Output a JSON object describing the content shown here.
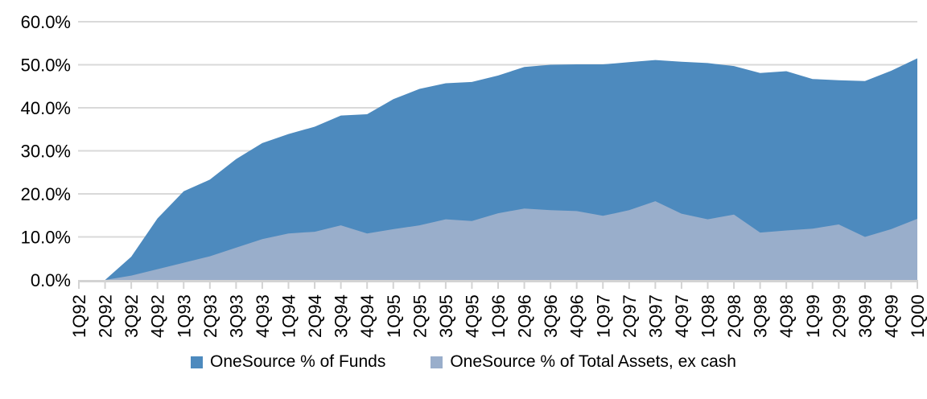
{
  "chart_data": {
    "type": "area",
    "title": "",
    "xlabel": "",
    "ylabel": "",
    "ylim": [
      0,
      60
    ],
    "ytick_step": 10,
    "yticks": [
      "0.0%",
      "10.0%",
      "20.0%",
      "30.0%",
      "40.0%",
      "50.0%",
      "60.0%"
    ],
    "grid": "horizontal",
    "legend_position": "bottom",
    "gridline_color": "#D9D9D9",
    "axis_color": "#D3D3D3",
    "text_color": "#000000",
    "background": "#FFFFFF",
    "overlapping_areas": true,
    "x": [
      "1Q92",
      "2Q92",
      "3Q92",
      "4Q92",
      "1Q93",
      "2Q93",
      "3Q93",
      "4Q93",
      "1Q94",
      "2Q94",
      "3Q94",
      "4Q94",
      "1Q95",
      "2Q95",
      "3Q95",
      "4Q95",
      "1Q96",
      "2Q96",
      "3Q96",
      "4Q96",
      "1Q97",
      "2Q97",
      "3Q97",
      "4Q97",
      "1Q98",
      "2Q98",
      "3Q98",
      "4Q98",
      "1Q99",
      "2Q99",
      "3Q99",
      "4Q99",
      "1Q00"
    ],
    "series": [
      {
        "name": "OneSource % of Funds",
        "color": "#4D8ABE",
        "values": [
          0.0,
          0.0,
          5.4,
          14.3,
          20.6,
          23.3,
          28.1,
          31.8,
          33.9,
          35.6,
          38.2,
          38.5,
          42.0,
          44.4,
          45.7,
          46.0,
          47.5,
          49.5,
          50.0,
          50.1,
          50.1,
          50.6,
          51.1,
          50.7,
          50.4,
          49.7,
          48.1,
          48.5,
          46.7,
          46.4,
          46.2,
          48.6,
          51.5
        ]
      },
      {
        "name": "OneSource % of Total Assets, ex cash",
        "color": "#99AECB",
        "values": [
          0.0,
          0.0,
          1.0,
          2.5,
          4.0,
          5.5,
          7.5,
          9.5,
          10.8,
          11.2,
          12.7,
          10.8,
          11.8,
          12.7,
          14.1,
          13.7,
          15.5,
          16.6,
          16.2,
          16.0,
          14.9,
          16.2,
          18.3,
          15.4,
          14.1,
          15.2,
          11.0,
          11.5,
          11.9,
          12.9,
          10.0,
          11.8,
          14.2
        ]
      }
    ]
  }
}
